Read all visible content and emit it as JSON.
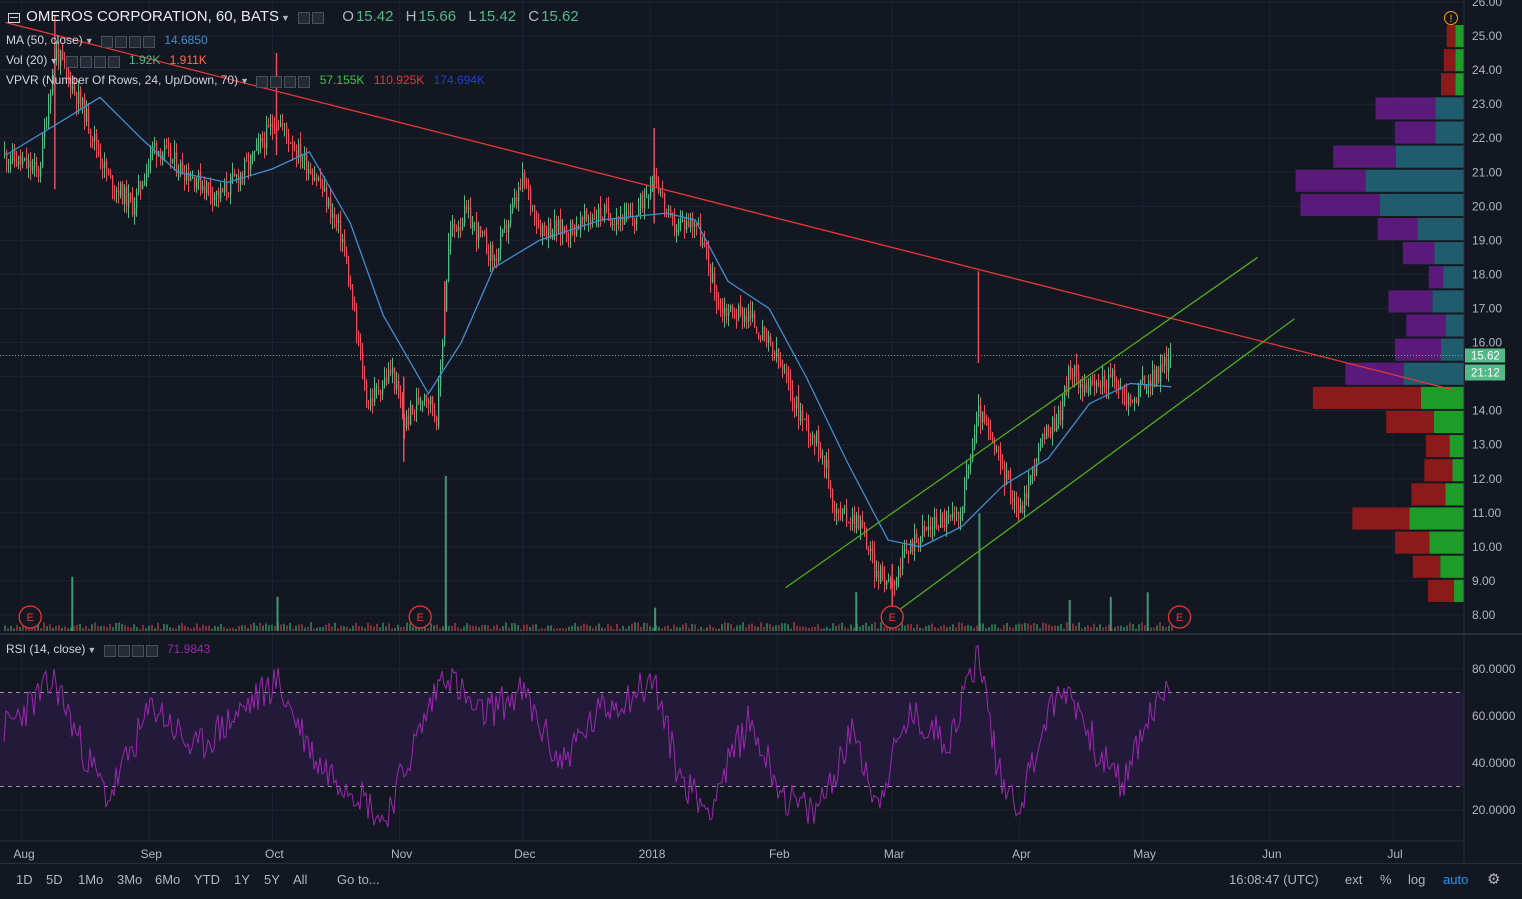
{
  "header": {
    "symbol": "OMEROS CORPORATION, 60, BATS",
    "open_label": "O",
    "open": "15.42",
    "high_label": "H",
    "high": "15.66",
    "low_label": "L",
    "low": "15.42",
    "close_label": "C",
    "close": "15.62"
  },
  "indicators": {
    "ma": {
      "label": "MA (50, close)",
      "value": "14.6850"
    },
    "vol": {
      "label": "Vol (20)",
      "value1": "1.92K",
      "value2": "1.911K"
    },
    "vpvr": {
      "label": "VPVR (Number Of Rows, 24, Up/Down, 70)",
      "value1": "57.155K",
      "value2": "110.925K",
      "value3": "174.694K"
    },
    "rsi": {
      "label": "RSI (14, close)",
      "value": "71.9843"
    }
  },
  "price_badge": {
    "price": "15.62",
    "countdown": "21:12"
  },
  "bottom_bar": {
    "timeframes": [
      "1D",
      "5D",
      "1Mo",
      "3Mo",
      "6Mo",
      "YTD",
      "1Y",
      "5Y",
      "All"
    ],
    "goto": "Go to...",
    "clock": "16:08:47 (UTC)",
    "ext": "ext",
    "percent": "%",
    "log": "log",
    "auto": "auto"
  },
  "colors": {
    "background": "#131722",
    "up": "#53b987",
    "down": "#eb4d5c",
    "ma": "#3f8ecf",
    "trendline": "#e53935",
    "channel": "#4caf1a",
    "rsi": "#9c27b0",
    "vp_up": "#1e9c2a",
    "vp_down": "#8b1a1a",
    "vp_va_up": "#1f5c6e",
    "vp_va_down": "#5b1a7a"
  },
  "chart_data": {
    "type": "candlestick",
    "x_ticks": [
      "Aug",
      "Sep",
      "Oct",
      "Nov",
      "Dec",
      "2018",
      "Feb",
      "Mar",
      "Apr",
      "May",
      "Jun",
      "Jul"
    ],
    "y_ticks": [
      "26.00",
      "25.00",
      "24.00",
      "23.00",
      "22.00",
      "21.00",
      "20.00",
      "19.00",
      "18.00",
      "17.00",
      "16.00",
      "15.00",
      "14.00",
      "13.00",
      "12.00",
      "11.00",
      "10.00",
      "9.00",
      "8.00"
    ],
    "ylim": [
      7.7,
      26.0
    ],
    "price_path": [
      {
        "date": "2017-07-28",
        "v": 21.5
      },
      {
        "date": "2017-08-05",
        "v": 21.0
      },
      {
        "date": "2017-08-09",
        "v": 24.6
      },
      {
        "date": "2017-08-16",
        "v": 22.8
      },
      {
        "date": "2017-08-22",
        "v": 20.8
      },
      {
        "date": "2017-08-28",
        "v": 20.0
      },
      {
        "date": "2017-09-02",
        "v": 21.8
      },
      {
        "date": "2017-09-10",
        "v": 21.0
      },
      {
        "date": "2017-09-18",
        "v": 20.3
      },
      {
        "date": "2017-09-25",
        "v": 21.2
      },
      {
        "date": "2017-10-02",
        "v": 22.6
      },
      {
        "date": "2017-10-06",
        "v": 21.8
      },
      {
        "date": "2017-10-12",
        "v": 20.8
      },
      {
        "date": "2017-10-18",
        "v": 19.0
      },
      {
        "date": "2017-10-24",
        "v": 14.2
      },
      {
        "date": "2017-10-30",
        "v": 15.2
      },
      {
        "date": "2017-11-02",
        "v": 13.6
      },
      {
        "date": "2017-11-07",
        "v": 14.6
      },
      {
        "date": "2017-11-10",
        "v": 13.8
      },
      {
        "date": "2017-11-13",
        "v": 19.2
      },
      {
        "date": "2017-11-17",
        "v": 19.8
      },
      {
        "date": "2017-11-24",
        "v": 18.4
      },
      {
        "date": "2017-12-01",
        "v": 20.8
      },
      {
        "date": "2017-12-05",
        "v": 19.4
      },
      {
        "date": "2017-12-12",
        "v": 19.3
      },
      {
        "date": "2017-12-19",
        "v": 19.8
      },
      {
        "date": "2017-12-28",
        "v": 19.6
      },
      {
        "date": "2018-01-02",
        "v": 21.0
      },
      {
        "date": "2018-01-06",
        "v": 19.4
      },
      {
        "date": "2018-01-12",
        "v": 19.6
      },
      {
        "date": "2018-01-18",
        "v": 17.0
      },
      {
        "date": "2018-01-25",
        "v": 16.8
      },
      {
        "date": "2018-02-01",
        "v": 15.5
      },
      {
        "date": "2018-02-06",
        "v": 14.0
      },
      {
        "date": "2018-02-12",
        "v": 12.8
      },
      {
        "date": "2018-02-15",
        "v": 11.0
      },
      {
        "date": "2018-02-21",
        "v": 10.8
      },
      {
        "date": "2018-02-25",
        "v": 9.2
      },
      {
        "date": "2018-03-01",
        "v": 9.0
      },
      {
        "date": "2018-03-06",
        "v": 10.2
      },
      {
        "date": "2018-03-12",
        "v": 10.8
      },
      {
        "date": "2018-03-17",
        "v": 10.8
      },
      {
        "date": "2018-03-22",
        "v": 14.0
      },
      {
        "date": "2018-03-27",
        "v": 12.5
      },
      {
        "date": "2018-04-01",
        "v": 11.0
      },
      {
        "date": "2018-04-06",
        "v": 13.0
      },
      {
        "date": "2018-04-11",
        "v": 14.0
      },
      {
        "date": "2018-04-13",
        "v": 15.2
      },
      {
        "date": "2018-04-18",
        "v": 14.6
      },
      {
        "date": "2018-04-23",
        "v": 15.0
      },
      {
        "date": "2018-04-28",
        "v": 14.2
      },
      {
        "date": "2018-05-01",
        "v": 14.8
      },
      {
        "date": "2018-05-04",
        "v": 15.0
      },
      {
        "date": "2018-05-08",
        "v": 15.6
      }
    ],
    "spikes": [
      {
        "date": "2017-08-09",
        "high": 25.6,
        "low": 20.5
      },
      {
        "date": "2017-10-02",
        "high": 24.5,
        "low": 21.5
      },
      {
        "date": "2017-11-02",
        "high": 15.0,
        "low": 12.5
      },
      {
        "date": "2017-11-12",
        "high": 17.8,
        "low": 16.2
      },
      {
        "date": "2018-01-02",
        "high": 22.3,
        "low": 19.5
      },
      {
        "date": "2018-03-22",
        "high": 18.1,
        "low": 15.4
      },
      {
        "date": "2018-03-01",
        "high": 9.5,
        "low": 8.2
      }
    ],
    "ma_path": [
      {
        "date": "2017-07-28",
        "v": 21.5
      },
      {
        "date": "2017-08-12",
        "v": 22.6
      },
      {
        "date": "2017-08-20",
        "v": 23.2
      },
      {
        "date": "2017-08-30",
        "v": 22.0
      },
      {
        "date": "2017-09-08",
        "v": 21.0
      },
      {
        "date": "2017-09-20",
        "v": 20.7
      },
      {
        "date": "2017-10-01",
        "v": 21.1
      },
      {
        "date": "2017-10-10",
        "v": 21.6
      },
      {
        "date": "2017-10-20",
        "v": 19.5
      },
      {
        "date": "2017-10-28",
        "v": 16.8
      },
      {
        "date": "2017-11-08",
        "v": 14.5
      },
      {
        "date": "2017-11-16",
        "v": 16.0
      },
      {
        "date": "2017-11-24",
        "v": 18.2
      },
      {
        "date": "2017-12-05",
        "v": 19.0
      },
      {
        "date": "2017-12-20",
        "v": 19.6
      },
      {
        "date": "2018-01-05",
        "v": 19.8
      },
      {
        "date": "2018-01-12",
        "v": 19.6
      },
      {
        "date": "2018-01-20",
        "v": 17.8
      },
      {
        "date": "2018-01-30",
        "v": 17.0
      },
      {
        "date": "2018-02-08",
        "v": 15.0
      },
      {
        "date": "2018-02-18",
        "v": 12.5
      },
      {
        "date": "2018-02-28",
        "v": 10.2
      },
      {
        "date": "2018-03-08",
        "v": 10.0
      },
      {
        "date": "2018-03-18",
        "v": 10.6
      },
      {
        "date": "2018-03-28",
        "v": 11.8
      },
      {
        "date": "2018-04-08",
        "v": 12.6
      },
      {
        "date": "2018-04-18",
        "v": 14.2
      },
      {
        "date": "2018-04-28",
        "v": 14.8
      },
      {
        "date": "2018-05-08",
        "v": 14.7
      }
    ],
    "trendline": [
      {
        "date": "2017-07-28",
        "v": 25.4
      },
      {
        "date": "2018-07-16",
        "v": 14.6
      }
    ],
    "channel": [
      [
        {
          "date": "2018-02-03",
          "v": 8.8
        },
        {
          "date": "2018-05-29",
          "v": 18.5
        }
      ],
      [
        {
          "date": "2018-03-01",
          "v": 8.0
        },
        {
          "date": "2018-06-07",
          "v": 16.7
        }
      ]
    ],
    "current_price": 15.62,
    "earnings_markers": [
      {
        "date": "2017-08-03",
        "label": "E"
      },
      {
        "date": "2017-11-06",
        "label": "E"
      },
      {
        "date": "2018-03-01",
        "label": "E"
      },
      {
        "date": "2018-05-10",
        "label": "E"
      }
    ],
    "volume_spikes": [
      {
        "date": "2017-08-13",
        "v": 0.35
      },
      {
        "date": "2017-10-02",
        "v": 0.22
      },
      {
        "date": "2017-11-12",
        "v": 1.0
      },
      {
        "date": "2018-01-02",
        "v": 0.15
      },
      {
        "date": "2018-02-20",
        "v": 0.25
      },
      {
        "date": "2018-03-22",
        "v": 0.76
      },
      {
        "date": "2018-04-13",
        "v": 0.2
      },
      {
        "date": "2018-04-23",
        "v": 0.22
      },
      {
        "date": "2018-05-02",
        "v": 0.25
      }
    ],
    "volume_profile": [
      {
        "price": 25.0,
        "up": 0.0081,
        "down": 0.0081
      },
      {
        "price": 24.0,
        "up": 0.0081,
        "down": 0.0108
      },
      {
        "price": 23.0,
        "up": 0.0081,
        "down": 0.0135
      },
      {
        "price": 22.0,
        "up": 0.027,
        "down": 0.0561
      },
      {
        "price": 21.5,
        "up": 0.027,
        "down": 0.0379
      },
      {
        "price": 21.0,
        "up": 0.0641,
        "down": 0.0587
      },
      {
        "price": 20.3,
        "up": 0.0926,
        "down": 0.0655
      },
      {
        "price": 19.6,
        "up": 0.0791,
        "down": 0.0744
      },
      {
        "price": 18.9,
        "up": 0.0439,
        "down": 0.0371
      },
      {
        "price": 18.2,
        "up": 0.0277,
        "down": 0.0297
      },
      {
        "price": 17.5,
        "up": 0.0196,
        "down": 0.0135
      },
      {
        "price": 16.8,
        "up": 0.0297,
        "down": 0.0412
      },
      {
        "price": 16.1,
        "up": 0.0169,
        "down": 0.0373
      },
      {
        "price": 15.5,
        "up": 0.0216,
        "down": 0.0432
      },
      {
        "price": 14.8,
        "up": 0.0567,
        "down": 0.0547
      },
      {
        "price": 14.0,
        "up": 0.0405,
        "down": 0.1014
      },
      {
        "price": 13.3,
        "up": 0.0284,
        "down": 0.0446
      },
      {
        "price": 12.6,
        "up": 0.0135,
        "down": 0.0223
      },
      {
        "price": 11.9,
        "up": 0.0108,
        "down": 0.0264
      },
      {
        "price": 11.3,
        "up": 0.0176,
        "down": 0.0318
      },
      {
        "price": 10.6,
        "up": 0.0513,
        "down": 0.0534
      },
      {
        "price": 9.9,
        "up": 0.0324,
        "down": 0.0324
      },
      {
        "price": 9.2,
        "up": 0.0223,
        "down": 0.0257
      },
      {
        "price": 8.6,
        "up": 0.0095,
        "down": 0.0243
      }
    ],
    "rsi": {
      "y_ticks": [
        "80.0000",
        "60.0000",
        "40.0000",
        "20.0000"
      ],
      "ylim": [
        10,
        90
      ],
      "overbought": 70,
      "oversold": 30,
      "path": [
        {
          "date": "2017-07-28",
          "v": 55
        },
        {
          "date": "2017-08-09",
          "v": 75
        },
        {
          "date": "2017-08-16",
          "v": 45
        },
        {
          "date": "2017-08-22",
          "v": 25
        },
        {
          "date": "2017-09-02",
          "v": 65
        },
        {
          "date": "2017-09-12",
          "v": 45
        },
        {
          "date": "2017-09-22",
          "v": 60
        },
        {
          "date": "2017-10-02",
          "v": 75
        },
        {
          "date": "2017-10-12",
          "v": 40
        },
        {
          "date": "2017-10-22",
          "v": 28
        },
        {
          "date": "2017-10-28",
          "v": 15
        },
        {
          "date": "2017-11-04",
          "v": 45
        },
        {
          "date": "2017-11-12",
          "v": 80
        },
        {
          "date": "2017-11-20",
          "v": 60
        },
        {
          "date": "2017-12-01",
          "v": 70
        },
        {
          "date": "2017-12-10",
          "v": 40
        },
        {
          "date": "2017-12-20",
          "v": 62
        },
        {
          "date": "2018-01-02",
          "v": 75
        },
        {
          "date": "2018-01-08",
          "v": 35
        },
        {
          "date": "2018-01-15",
          "v": 20
        },
        {
          "date": "2018-01-25",
          "v": 58
        },
        {
          "date": "2018-02-03",
          "v": 25
        },
        {
          "date": "2018-02-10",
          "v": 18
        },
        {
          "date": "2018-02-20",
          "v": 55
        },
        {
          "date": "2018-02-25",
          "v": 22
        },
        {
          "date": "2018-03-05",
          "v": 60
        },
        {
          "date": "2018-03-15",
          "v": 50
        },
        {
          "date": "2018-03-22",
          "v": 88
        },
        {
          "date": "2018-03-27",
          "v": 35
        },
        {
          "date": "2018-04-01",
          "v": 22
        },
        {
          "date": "2018-04-08",
          "v": 62
        },
        {
          "date": "2018-04-13",
          "v": 72
        },
        {
          "date": "2018-04-20",
          "v": 45
        },
        {
          "date": "2018-04-26",
          "v": 30
        },
        {
          "date": "2018-05-02",
          "v": 58
        },
        {
          "date": "2018-05-08",
          "v": 72
        }
      ]
    }
  }
}
